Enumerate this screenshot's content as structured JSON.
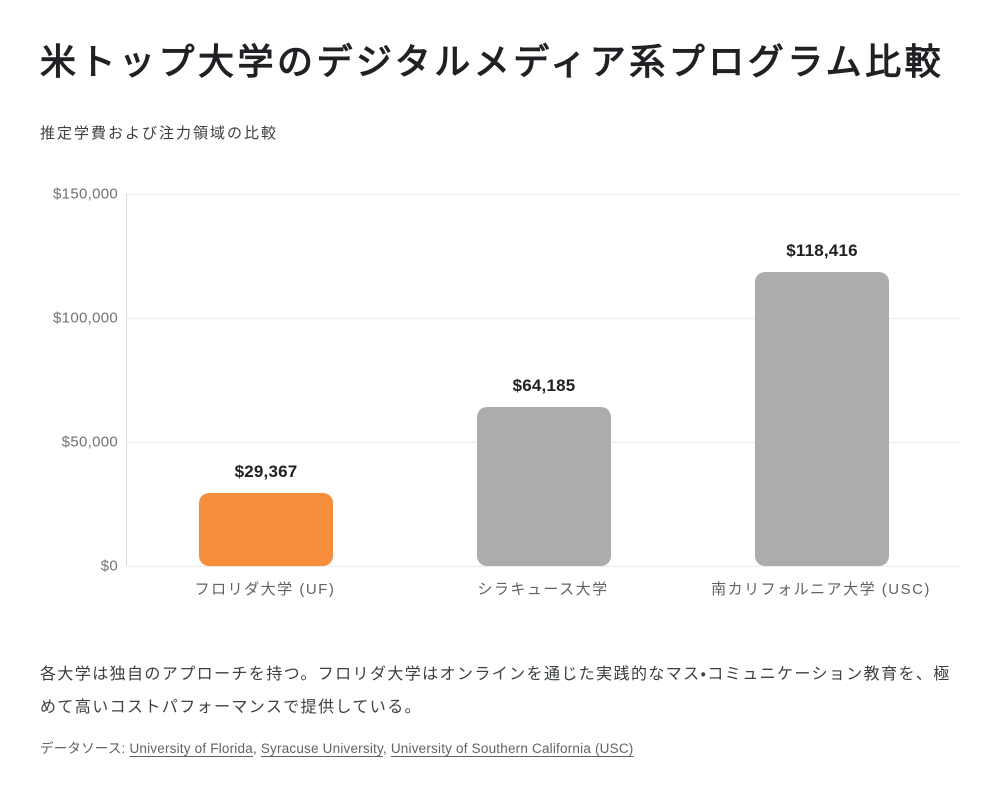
{
  "page": {
    "title": "米トップ大学のデジタルメディア系プログラム比較",
    "subtitle": "推定学費および注力領域の比較",
    "commentary": "各大学は独自のアプローチを持つ。フロリダ大学はオンラインを通じた実践的なマス・コミュニケーション教育を、極めて高いコストパフォーマンスで提供している。",
    "source_label": "データソース:",
    "sources": [
      {
        "text": "University of Florida"
      },
      {
        "text": "Syracuse University"
      },
      {
        "text": "University of Southern California (USC)"
      }
    ],
    "source_separator": ", "
  },
  "colors": {
    "highlight_bar": "#f78e3c",
    "default_bar": "#acacac",
    "gridline": "#ebebeb",
    "axis_line": "#d9dbde",
    "title_text": "#202124",
    "body_text": "#3c4043",
    "muted_text": "#5f6368",
    "tick_text": "#6f7276"
  },
  "chart_data": {
    "type": "bar",
    "title": "米トップ大学のデジタルメディア系プログラム比較",
    "subtitle": "推定学費および注力領域の比較",
    "categories": [
      "フロリダ大学 (UF)",
      "シラキュース大学",
      "南カリフォルニア大学 (USC)"
    ],
    "values": [
      29367,
      64185,
      118416
    ],
    "value_labels": [
      "$29,367",
      "$64,185",
      "$118,416"
    ],
    "bar_colors": [
      "#f78e3c",
      "#acacac",
      "#acacac"
    ],
    "highlighted_category": "フロリダ大学 (UF)",
    "xlabel": "",
    "ylabel": "",
    "ylim": [
      0,
      150000
    ],
    "yticks": [
      0,
      50000,
      100000,
      150000
    ],
    "ytick_labels": [
      "$0",
      "$50,000",
      "$100,000",
      "$150,000"
    ],
    "grid": true,
    "legend": false
  }
}
